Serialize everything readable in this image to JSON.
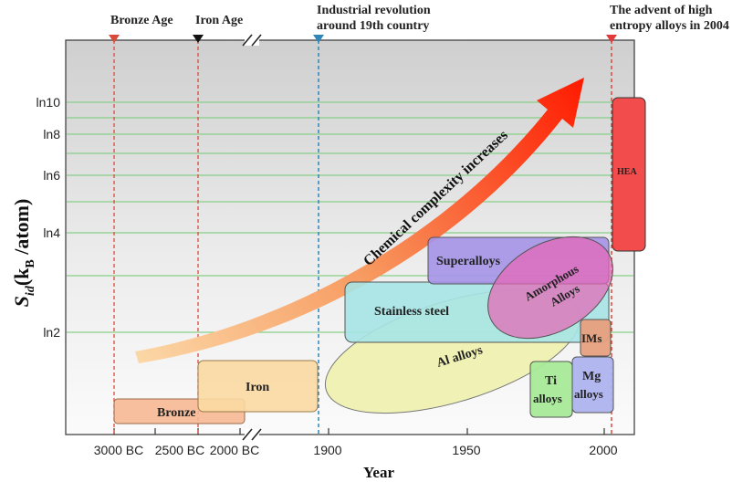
{
  "axes": {
    "y_label_main": "S",
    "y_label_sub": "id",
    "y_label_rest_1": "(k",
    "y_label_kb_sub": "B",
    "y_label_rest_2": " /atom)",
    "x_label": "Year",
    "y_ticks": [
      "ln10",
      "ln8",
      "ln6",
      "ln4",
      "ln2"
    ],
    "x_ticks_bc": [
      "3000 BC",
      "2500 BC",
      "2000 BC"
    ],
    "x_ticks_ad": [
      "1900",
      "1950",
      "2000"
    ]
  },
  "markers": {
    "bronze_age": "Bronze Age",
    "iron_age": "Iron Age",
    "industrial_line1": "Industrial revolution",
    "industrial_line2": "around 19th country",
    "hea_line1": "The advent of high",
    "hea_line2": "entropy alloys in 2004"
  },
  "arrow_label": "Chemical complexity increases",
  "regions": {
    "bronze": "Bronze",
    "iron": "Iron",
    "stainless": "Stainless steel",
    "al": "Al alloys",
    "superalloys": "Superalloys",
    "amorphous_line1": "Amorphous",
    "amorphous_line2": "Alloys",
    "ti_line1": "Ti",
    "ti_line2": "alloys",
    "mg_line1": "Mg",
    "mg_line2": "alloys",
    "ims": "IMs",
    "hea": "HEA"
  },
  "colors": {
    "bronze": "#f6b894",
    "iron": "#fbd9a2",
    "stainless": "#a6e4e6",
    "al": "#eef0a8",
    "superalloys": "#a593e8",
    "amorphous": "#e667b6",
    "ti": "#a8ea98",
    "mg": "#aeb3ef",
    "ims": "#e7a07e",
    "hea": "#f24c4c",
    "grid": "#88d088",
    "marker_red": "#d94a3a",
    "marker_blue": "#2e86b9"
  }
}
